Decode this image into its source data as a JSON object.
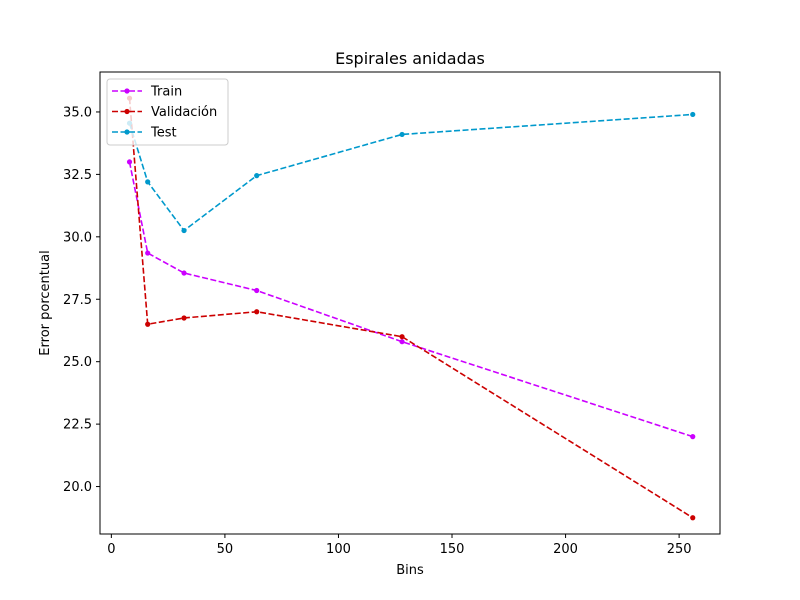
{
  "chart_data": {
    "type": "line",
    "title": "Espirales anidadas",
    "xlabel": "Bins",
    "ylabel": "Error porcentual",
    "xlim": [
      -5,
      268
    ],
    "ylim": [
      18.1,
      36.6
    ],
    "xticks": [
      0,
      50,
      100,
      150,
      200,
      250
    ],
    "yticks": [
      20.0,
      22.5,
      25.0,
      27.5,
      30.0,
      32.5,
      35.0
    ],
    "ytick_labels": [
      "20.0",
      "22.5",
      "25.0",
      "27.5",
      "30.0",
      "32.5",
      "35.0"
    ],
    "legend_position": "upper-left",
    "grid": false,
    "series": [
      {
        "name": "Train",
        "color": "#cc00ff",
        "x": [
          8,
          16,
          32,
          64,
          128,
          256
        ],
        "y": [
          33.0,
          29.35,
          28.55,
          27.85,
          25.8,
          22.0
        ]
      },
      {
        "name": "Validación",
        "color": "#cc0000",
        "x": [
          8,
          16,
          32,
          64,
          128,
          256
        ],
        "y": [
          35.55,
          26.5,
          26.75,
          27.0,
          26.0,
          18.75
        ]
      },
      {
        "name": "Test",
        "color": "#0099cc",
        "x": [
          8,
          16,
          32,
          64,
          128,
          256
        ],
        "y": [
          34.55,
          32.2,
          30.25,
          32.45,
          34.1,
          34.9
        ]
      }
    ]
  }
}
